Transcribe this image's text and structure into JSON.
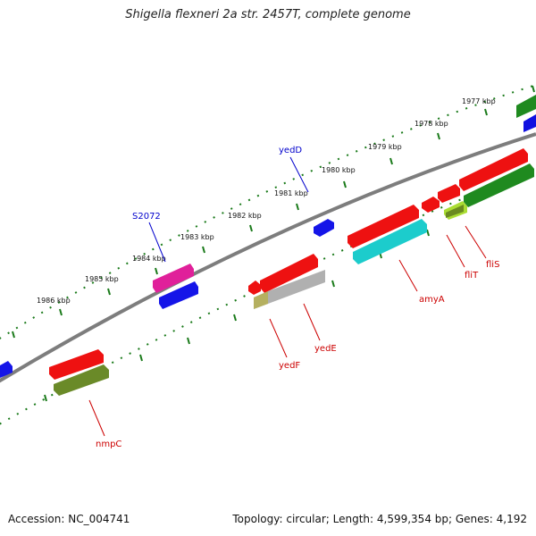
{
  "title": "Shigella flexneri 2a str. 2457T, complete genome",
  "accession": "Accession: NC_004741",
  "topology": "Topology: circular; Length: 4,599,354 bp; Genes: 4,192",
  "kbp_labels": [
    "1977 kbp",
    "1978 kbp",
    "1979 kbp",
    "1980 kbp",
    "1981 kbp",
    "1982 kbp",
    "1983 kbp",
    "1984 kbp",
    "1985 kbp",
    "1986 kbp"
  ],
  "gene_labels": {
    "yedD": "yedD",
    "S2072": "S2072",
    "yedE": "yedE",
    "yedF": "yedF",
    "amyA": "amyA",
    "fliT": "fliT",
    "fliS": "fliS",
    "nmpC": "nmpC"
  },
  "colors": {
    "label_plus": "#0000cc",
    "label_minus": "#cc0000",
    "backbone": "#808080",
    "tick": "#1a7a1a"
  }
}
